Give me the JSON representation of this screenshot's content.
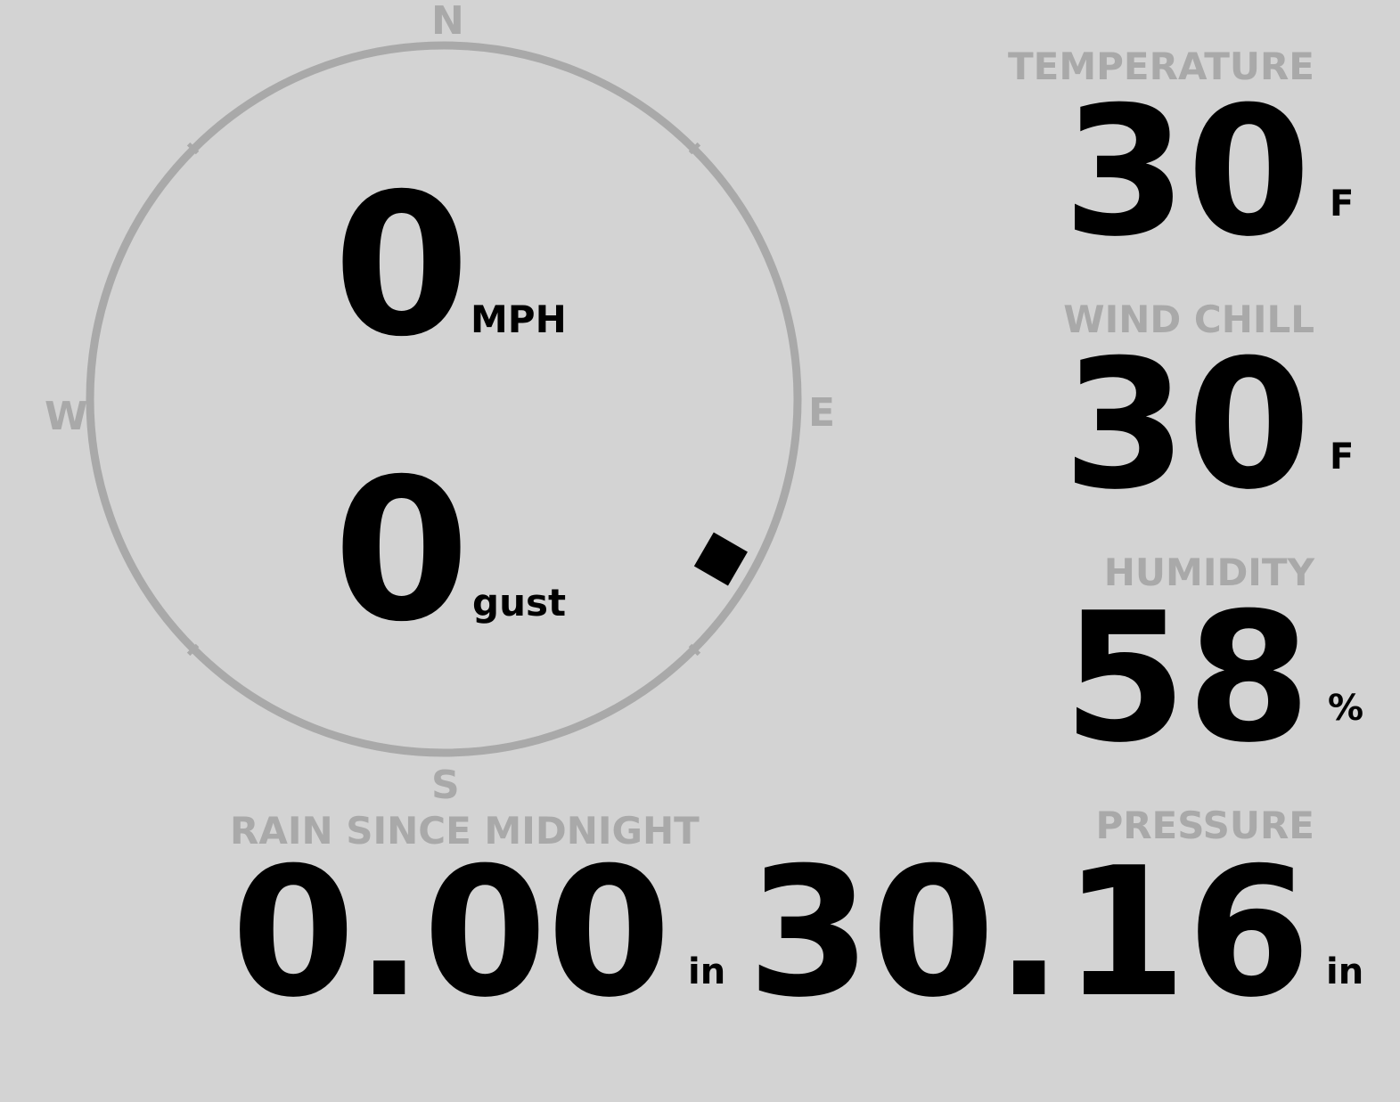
{
  "compass": {
    "north": "N",
    "east": "E",
    "south": "S",
    "west": "W",
    "wind_direction_deg": 120,
    "ring_color": "#a9a9a9"
  },
  "wind": {
    "speed": "0",
    "speed_unit": "MPH",
    "gust": "0",
    "gust_unit": "gust"
  },
  "temperature": {
    "label": "TEMPERATURE",
    "value": "30",
    "unit": "F"
  },
  "wind_chill": {
    "label": "WIND CHILL",
    "value": "30",
    "unit": "F"
  },
  "humidity": {
    "label": "HUMIDITY",
    "value": "58",
    "unit": "%"
  },
  "rain": {
    "label": "RAIN SINCE MIDNIGHT",
    "value": "0.00",
    "unit": "in"
  },
  "pressure": {
    "label": "PRESSURE",
    "value": "30.16",
    "unit": "in"
  },
  "colors": {
    "background": "#d3d3d3",
    "label": "#a9a9a9",
    "value": "#000000"
  }
}
